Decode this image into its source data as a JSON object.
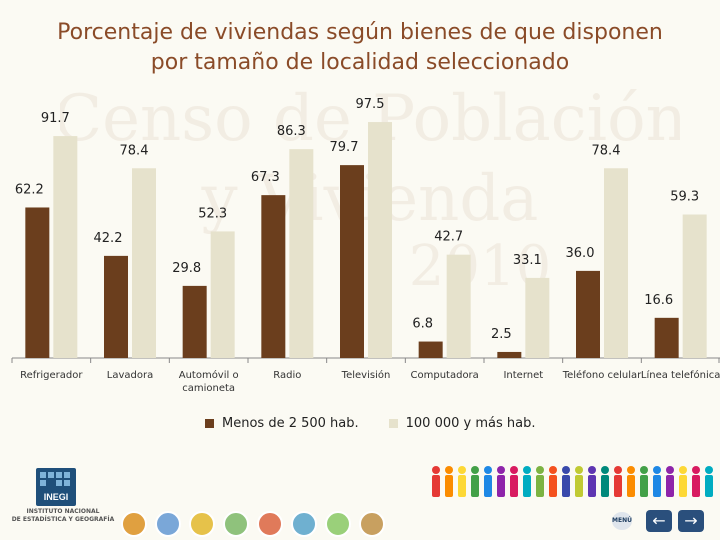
{
  "title_line1": "Porcentaje de viviendas según bienes de que disponen",
  "title_line2": "por tamaño de localidad seleccionado",
  "watermark": {
    "line1": "Censo de Población",
    "line2": "y Vivienda",
    "year": "2010"
  },
  "logo": {
    "name": "INEGI",
    "caption_line1": "INSTITUTO NACIONAL",
    "caption_line2": "DE ESTADÍSTICA Y GEOGRAFÍA"
  },
  "nav": {
    "menu": "MENÚ",
    "back": "←",
    "forward": "→"
  },
  "colors": {
    "series1": "#6b3e1d",
    "series2": "#e6e2cc",
    "title": "#8a4b28",
    "axis": "#888888"
  },
  "chart_data": {
    "type": "bar",
    "categories": [
      "Refrigerador",
      "Lavadora",
      "Automóvil o camioneta",
      "Radio",
      "Televisión",
      "Computadora",
      "Internet",
      "Teléfono celular",
      "Línea telefónica"
    ],
    "category_lines": [
      [
        "Refrigerador"
      ],
      [
        "Lavadora"
      ],
      [
        "Automóvil o",
        "camioneta"
      ],
      [
        "Radio"
      ],
      [
        "Televisión"
      ],
      [
        "Computadora"
      ],
      [
        "Internet"
      ],
      [
        "Teléfono celular"
      ],
      [
        "Línea telefónica"
      ]
    ],
    "series": [
      {
        "name": "Menos de 2 500 hab.",
        "values": [
          62.2,
          42.2,
          29.8,
          67.3,
          79.7,
          6.8,
          2.5,
          36.0,
          16.6
        ]
      },
      {
        "name": "100 000 y más hab.",
        "values": [
          91.7,
          78.4,
          52.3,
          86.3,
          97.5,
          42.7,
          33.1,
          78.4,
          59.3
        ]
      }
    ],
    "ylim": [
      0,
      100
    ],
    "grid": false,
    "legend": "bottom"
  }
}
